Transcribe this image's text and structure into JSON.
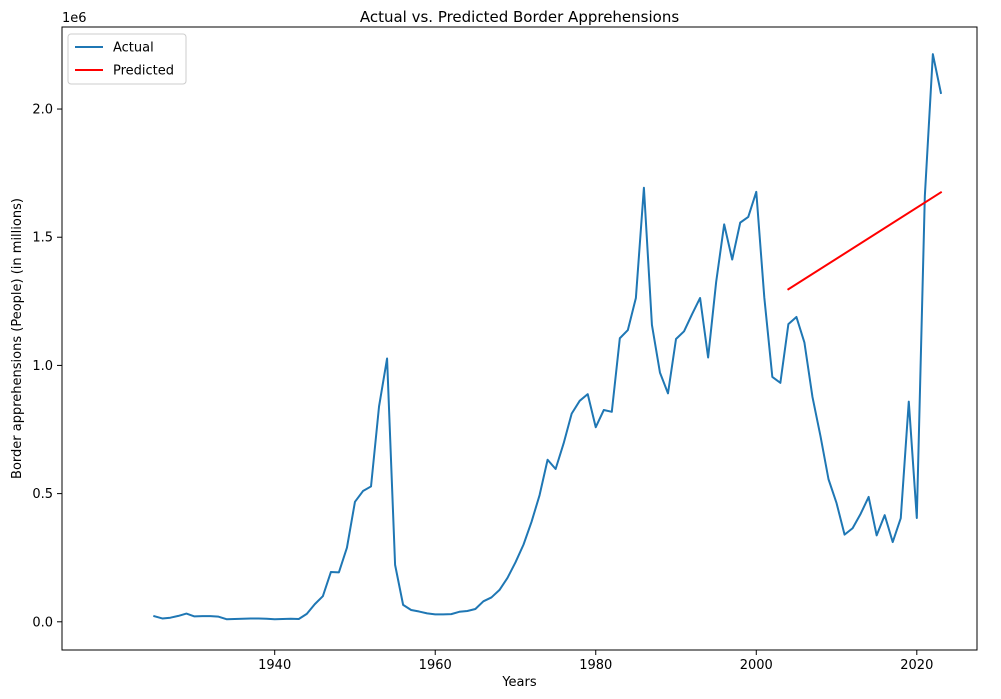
{
  "chart_data": {
    "type": "line",
    "title": "Actual vs. Predicted Border Apprehensions",
    "xlabel": "Years",
    "ylabel": "Border apprehensions (People) (in millions)",
    "y_offset_label": "1e6",
    "xlim": [
      1913.5,
      2027.5
    ],
    "ylim": [
      -110000,
      2320000
    ],
    "x_ticks": [
      1940,
      1960,
      1980,
      2000,
      2020
    ],
    "x_tick_labels": [
      "1940",
      "1960",
      "1980",
      "2000",
      "2020"
    ],
    "y_ticks": [
      0,
      500000,
      1000000,
      1500000,
      2000000
    ],
    "y_tick_labels": [
      "0.0",
      "0.5",
      "1.0",
      "1.5",
      "2.0"
    ],
    "grid": false,
    "legend_position": "upper-left",
    "series": [
      {
        "name": "Actual",
        "color": "#1f77b4",
        "x": [
          1925,
          1926,
          1927,
          1928,
          1929,
          1930,
          1931,
          1932,
          1933,
          1934,
          1935,
          1936,
          1937,
          1938,
          1939,
          1940,
          1941,
          1942,
          1943,
          1944,
          1945,
          1946,
          1947,
          1948,
          1949,
          1950,
          1951,
          1952,
          1953,
          1954,
          1955,
          1956,
          1957,
          1958,
          1959,
          1960,
          1961,
          1962,
          1963,
          1964,
          1965,
          1966,
          1967,
          1968,
          1969,
          1970,
          1971,
          1972,
          1973,
          1974,
          1975,
          1976,
          1977,
          1978,
          1979,
          1980,
          1981,
          1982,
          1983,
          1984,
          1985,
          1986,
          1987,
          1988,
          1989,
          1990,
          1991,
          1992,
          1993,
          1994,
          1995,
          1996,
          1997,
          1998,
          1999,
          2000,
          2001,
          2002,
          2003,
          2004,
          2005,
          2006,
          2007,
          2008,
          2009,
          2010,
          2011,
          2012,
          2013,
          2014,
          2015,
          2016,
          2017,
          2018,
          2019,
          2020,
          2021,
          2022,
          2023
        ],
        "values": [
          22000,
          13000,
          16000,
          23000,
          32000,
          21000,
          22000,
          22000,
          20000,
          10000,
          11000,
          12000,
          13000,
          13000,
          12000,
          10000,
          11000,
          12000,
          11000,
          31000,
          69000,
          100000,
          194000,
          193000,
          289000,
          468000,
          510000,
          528000,
          840000,
          1027000,
          222000,
          66000,
          46000,
          40000,
          33000,
          29000,
          29000,
          30000,
          39000,
          42000,
          50000,
          80000,
          95000,
          124000,
          171000,
          232000,
          301000,
          390000,
          494000,
          632000,
          596000,
          696000,
          812000,
          862000,
          888000,
          759000,
          826000,
          819000,
          1106000,
          1138000,
          1263000,
          1693000,
          1158000,
          972000,
          891000,
          1103000,
          1133000,
          1200000,
          1263000,
          1031000,
          1325000,
          1550000,
          1413000,
          1557000,
          1579000,
          1677000,
          1265000,
          955000,
          932000,
          1161000,
          1189000,
          1089000,
          877000,
          724000,
          556000,
          463000,
          340000,
          365000,
          421000,
          487000,
          337000,
          416000,
          311000,
          404000,
          859000,
          405000,
          1660000,
          2214000,
          2063000
        ]
      },
      {
        "name": "Predicted",
        "color": "#ff0000",
        "x": [
          2004,
          2023
        ],
        "values": [
          1297000,
          1675000
        ]
      }
    ]
  }
}
